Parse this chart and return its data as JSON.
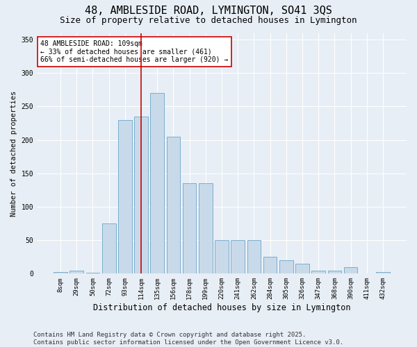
{
  "title1": "48, AMBLESIDE ROAD, LYMINGTON, SO41 3QS",
  "title2": "Size of property relative to detached houses in Lymington",
  "xlabel": "Distribution of detached houses by size in Lymington",
  "ylabel": "Number of detached properties",
  "categories": [
    "8sqm",
    "29sqm",
    "50sqm",
    "72sqm",
    "93sqm",
    "114sqm",
    "135sqm",
    "156sqm",
    "178sqm",
    "199sqm",
    "220sqm",
    "241sqm",
    "262sqm",
    "284sqm",
    "305sqm",
    "326sqm",
    "347sqm",
    "368sqm",
    "390sqm",
    "411sqm",
    "432sqm"
  ],
  "values": [
    2,
    4,
    1,
    75,
    230,
    235,
    270,
    205,
    135,
    135,
    50,
    50,
    50,
    25,
    20,
    15,
    5,
    5,
    10,
    0,
    2
  ],
  "bar_color": "#c8daea",
  "bar_edge_color": "#7aaece",
  "vline_x_idx": 5,
  "vline_color": "#cc0000",
  "annotation_text": "48 AMBLESIDE ROAD: 109sqm\n← 33% of detached houses are smaller (461)\n66% of semi-detached houses are larger (920) →",
  "annotation_box_facecolor": "#ffffff",
  "annotation_box_edgecolor": "#cc0000",
  "ylim": [
    0,
    360
  ],
  "yticks": [
    0,
    50,
    100,
    150,
    200,
    250,
    300,
    350
  ],
  "footer": "Contains HM Land Registry data © Crown copyright and database right 2025.\nContains public sector information licensed under the Open Government Licence v3.0.",
  "bg_color": "#e8eef5",
  "plot_bg_color": "#e8eef5",
  "title1_fontsize": 11,
  "title2_fontsize": 9,
  "xlabel_fontsize": 8.5,
  "ylabel_fontsize": 7.5,
  "footer_fontsize": 6.5,
  "annotation_fontsize": 7,
  "grid_color": "#ffffff",
  "tick_label_fontsize": 6.5,
  "ytick_fontsize": 7
}
